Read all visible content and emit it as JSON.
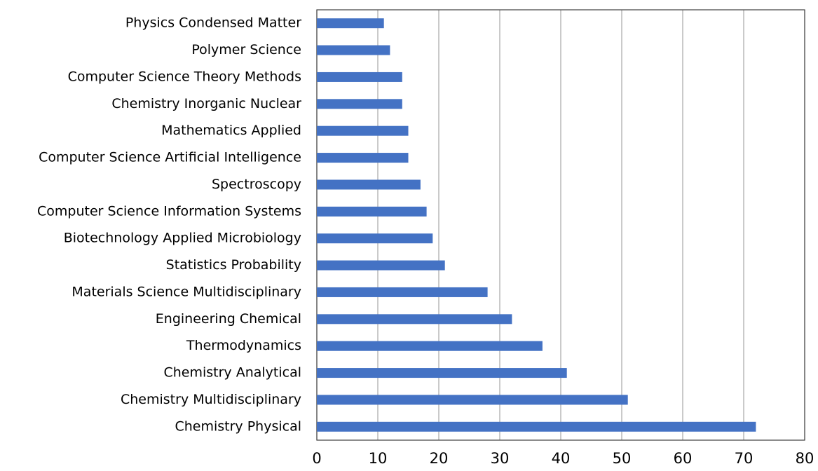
{
  "chart_data": {
    "type": "bar",
    "orientation": "horizontal",
    "categories": [
      "Physics Condensed Matter",
      "Polymer Science",
      "Computer Science Theory Methods",
      "Chemistry Inorganic Nuclear",
      "Mathematics Applied",
      "Computer Science Artificial Intelligence",
      "Spectroscopy",
      "Computer Science Information Systems",
      "Biotechnology Applied Microbiology",
      "Statistics Probability",
      "Materials Science Multidisciplinary",
      "Engineering Chemical",
      "Thermodynamics",
      "Chemistry Analytical",
      "Chemistry Multidisciplinary",
      "Chemistry Physical"
    ],
    "values": [
      11,
      12,
      14,
      14,
      15,
      15,
      17,
      18,
      19,
      21,
      28,
      32,
      37,
      41,
      51,
      72
    ],
    "color": "#4472c4",
    "xlim": [
      0,
      80
    ],
    "xticks": [
      0,
      10,
      20,
      30,
      40,
      50,
      60,
      70,
      80
    ],
    "grid": true
  }
}
